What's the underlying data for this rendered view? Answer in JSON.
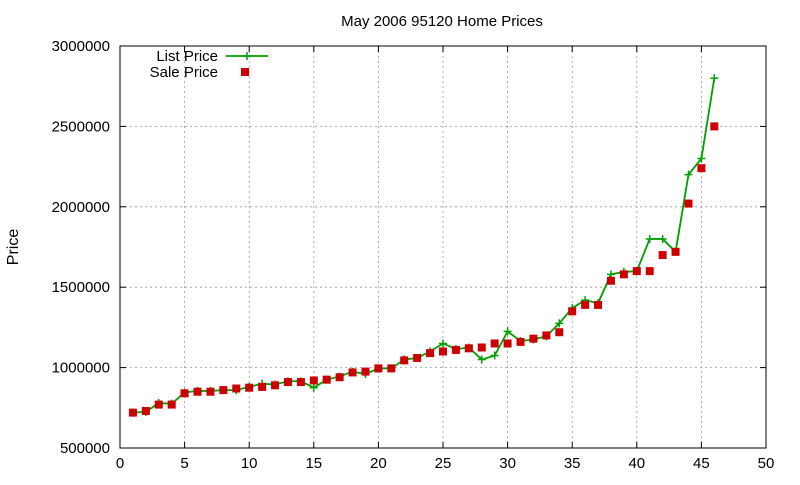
{
  "chart_data": {
    "type": "line",
    "title": "May 2006 95120 Home Prices",
    "xlabel": "",
    "ylabel": "Price",
    "xlim": [
      0,
      50
    ],
    "ylim": [
      500000,
      3000000
    ],
    "xticks": [
      0,
      5,
      10,
      15,
      20,
      25,
      30,
      35,
      40,
      45,
      50
    ],
    "yticks": [
      500000,
      1000000,
      1500000,
      2000000,
      2500000,
      3000000
    ],
    "grid": true,
    "legend_position": "top-left",
    "x": [
      1,
      2,
      3,
      4,
      5,
      6,
      7,
      8,
      9,
      10,
      11,
      12,
      13,
      14,
      15,
      16,
      17,
      18,
      19,
      20,
      21,
      22,
      23,
      24,
      25,
      26,
      27,
      28,
      29,
      30,
      31,
      32,
      33,
      34,
      35,
      36,
      37,
      38,
      39,
      40,
      41,
      42,
      43,
      44,
      45,
      46
    ],
    "series": [
      {
        "name": "List Price",
        "style": "line+cross",
        "color": "#00a000",
        "values": [
          720000,
          725000,
          780000,
          775000,
          845000,
          855000,
          855000,
          860000,
          860000,
          880000,
          900000,
          895000,
          915000,
          915000,
          875000,
          925000,
          945000,
          975000,
          960000,
          995000,
          995000,
          1050000,
          1060000,
          1100000,
          1150000,
          1115000,
          1125000,
          1050000,
          1075000,
          1225000,
          1165000,
          1175000,
          1195000,
          1275000,
          1370000,
          1420000,
          1400000,
          1580000,
          1595000,
          1600000,
          1800000,
          1800000,
          1720000,
          2200000,
          2300000,
          2800000
        ]
      },
      {
        "name": "Sale Price",
        "style": "square",
        "color": "#cc0000",
        "values": [
          720000,
          730000,
          770000,
          770000,
          840000,
          850000,
          850000,
          860000,
          870000,
          875000,
          880000,
          890000,
          910000,
          910000,
          920000,
          925000,
          940000,
          970000,
          975000,
          995000,
          995000,
          1045000,
          1060000,
          1090000,
          1100000,
          1110000,
          1120000,
          1125000,
          1150000,
          1150000,
          1160000,
          1180000,
          1200000,
          1220000,
          1350000,
          1390000,
          1390000,
          1540000,
          1580000,
          1600000,
          1600000,
          1700000,
          1720000,
          2020000,
          2240000,
          2500000
        ]
      }
    ]
  }
}
